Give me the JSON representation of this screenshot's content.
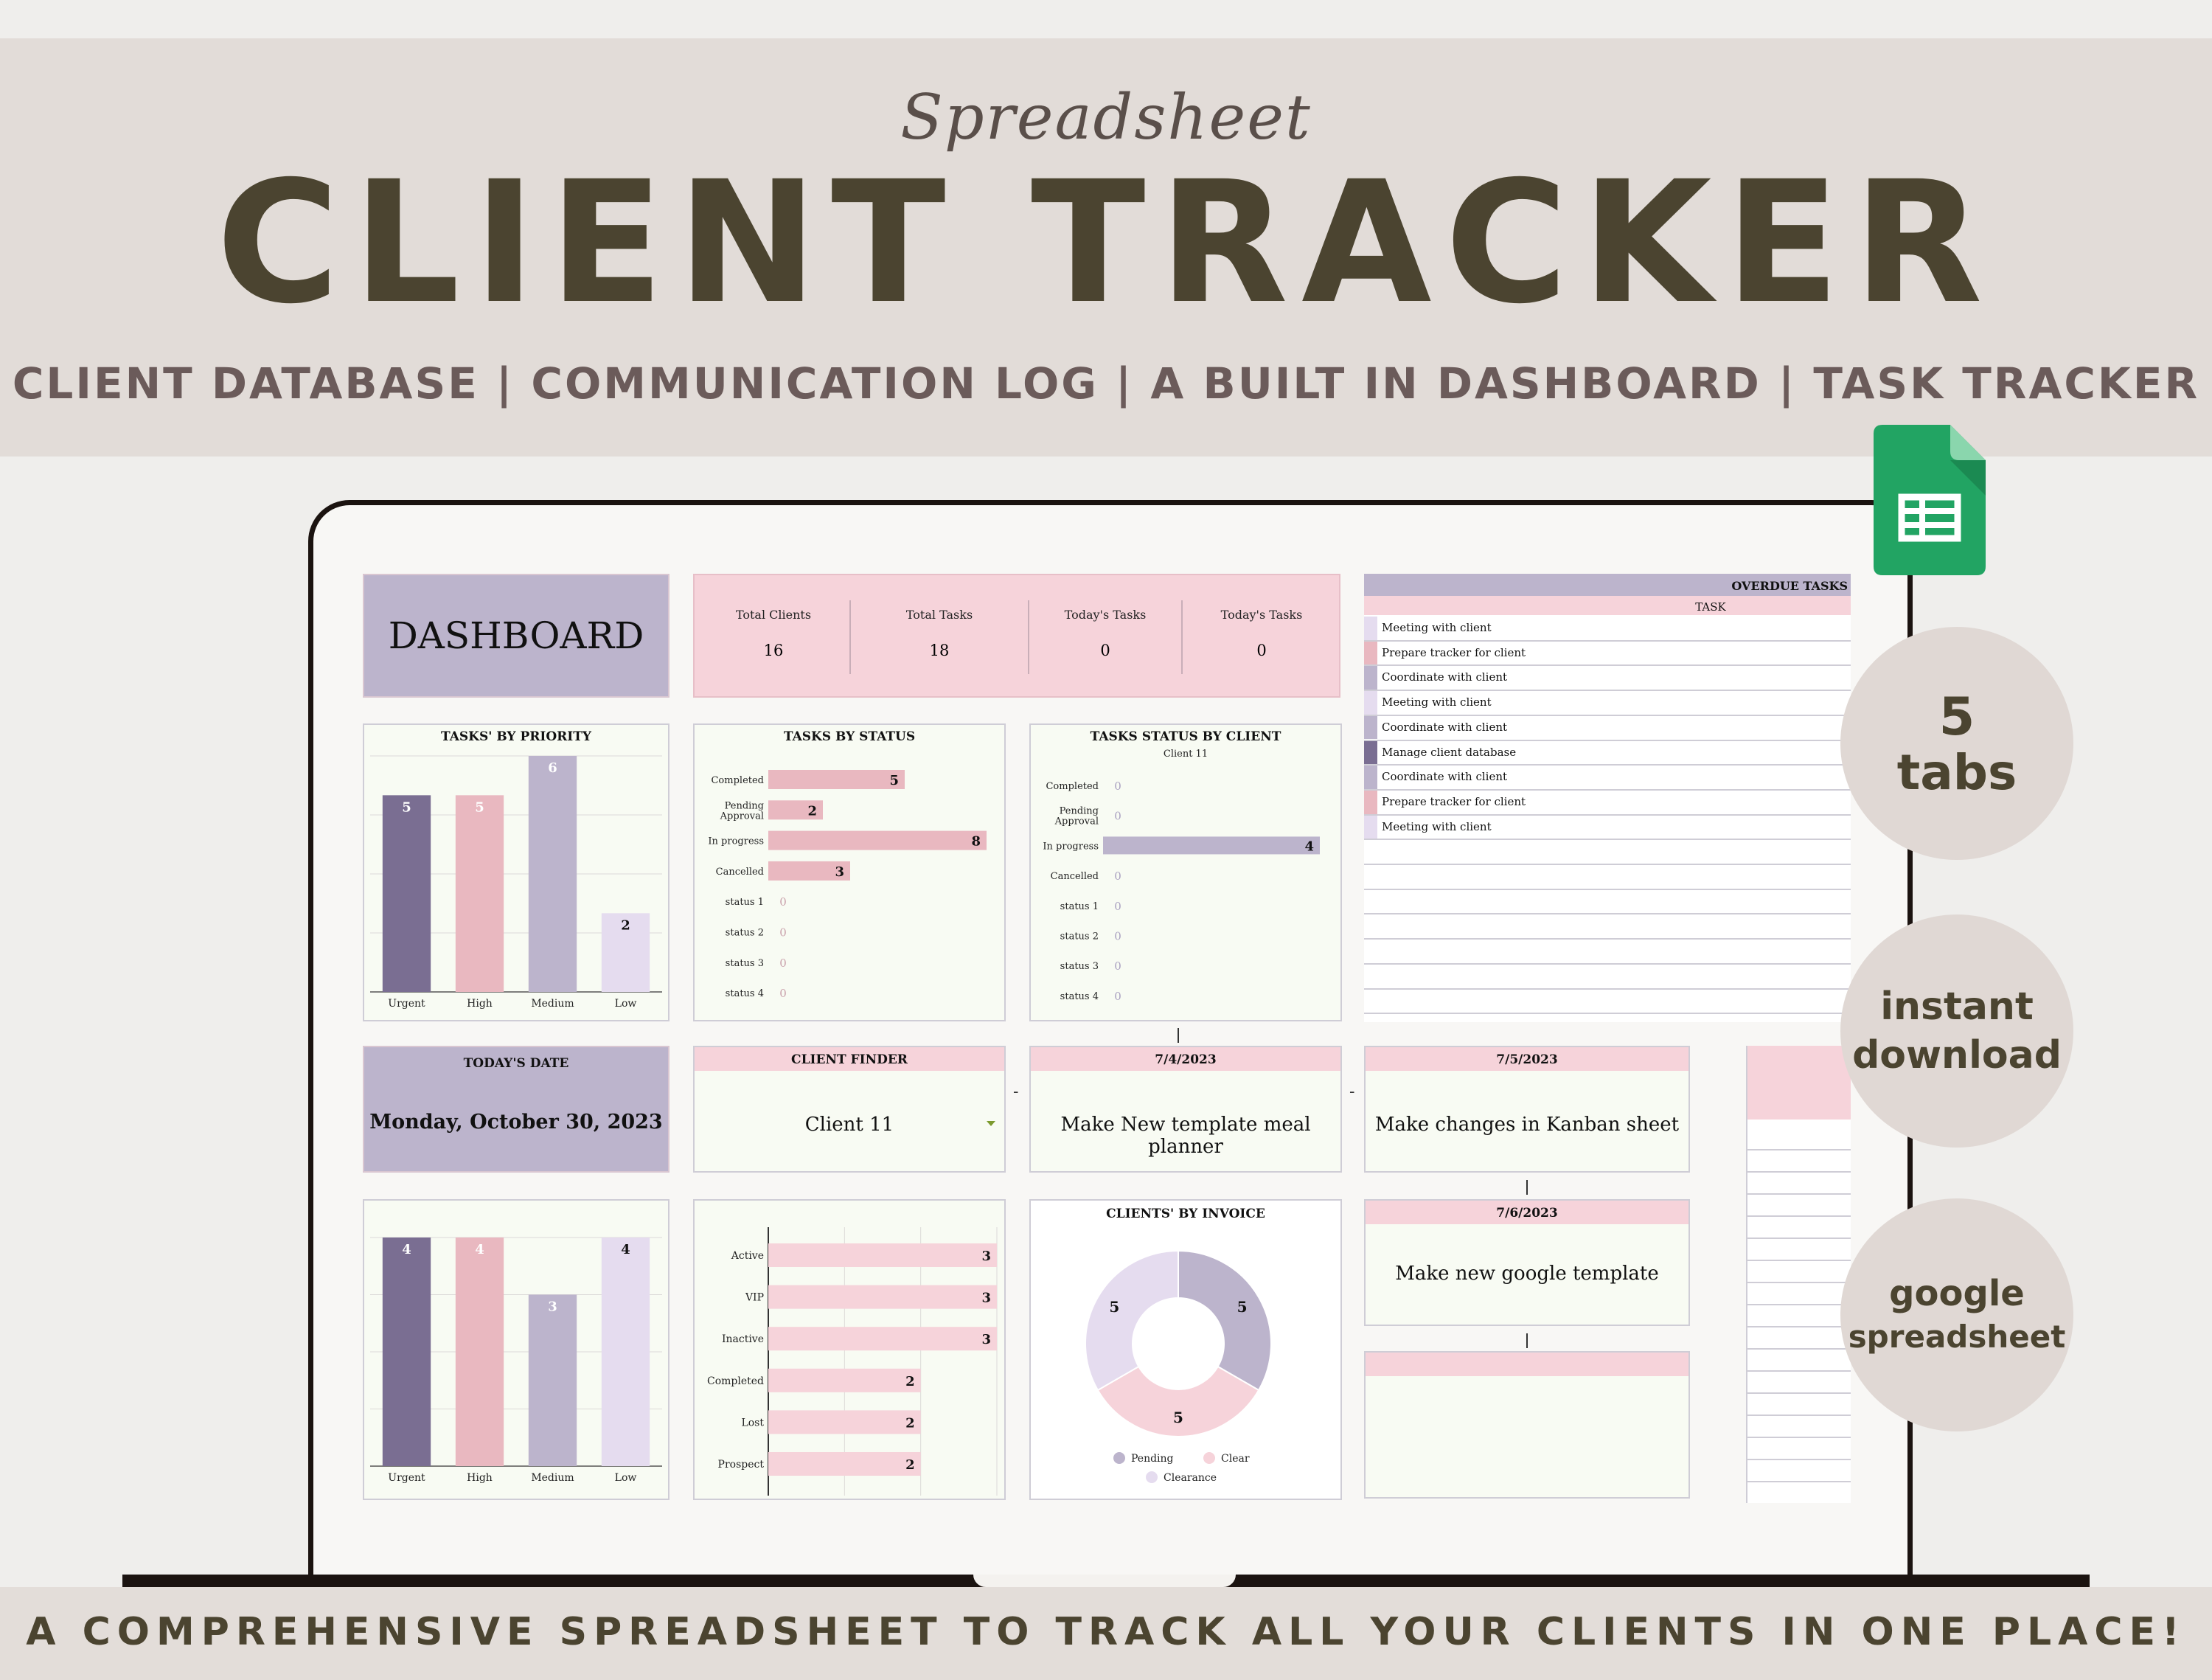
{
  "banner": {
    "script_label": "Spreadsheet",
    "title": "CLIENT TRACKER",
    "subtitle": "CLIENT DATABASE | COMMUNICATION LOG | A BUILT IN DASHBOARD | TASK TRACKER",
    "footer": "A COMPREHENSIVE SPREADSHEET TO TRACK ALL YOUR CLIENTS IN ONE PLACE!"
  },
  "badges": [
    {
      "line1": "5",
      "line2": "tabs"
    },
    {
      "line1": "instant",
      "line2": "download"
    },
    {
      "line1": "google",
      "line2": "spreadsheet"
    }
  ],
  "icons": {
    "sheets": "google-sheets-icon"
  },
  "colors": {
    "purple_dark": "#7a6e92",
    "pink": "#e9b8c0",
    "lavender": "#bcb4cc",
    "lavender_light": "#e5dcef",
    "header_pink": "#f6d3da",
    "panel_bg": "#f8fbf3",
    "dark_text": "#4b4430"
  },
  "dashboard": {
    "title": "DASHBOARD",
    "stats": [
      {
        "label": "Total Clients",
        "value": "16"
      },
      {
        "label": "Total Tasks",
        "value": "18"
      },
      {
        "label": "Today's Tasks",
        "value": "0"
      },
      {
        "label": "Today's Tasks",
        "value": "0"
      }
    ],
    "overdue": {
      "title": "OVERDUE TASKS",
      "column": "TASK",
      "rows": [
        {
          "task": "Meeting with client",
          "color": "#e5dcef"
        },
        {
          "task": "Prepare tracker for client",
          "color": "#e9b8c0"
        },
        {
          "task": "Coordinate with client",
          "color": "#bcb4cc"
        },
        {
          "task": "Meeting with client",
          "color": "#e5dcef"
        },
        {
          "task": "Coordinate with client",
          "color": "#bcb4cc"
        },
        {
          "task": "Manage client database",
          "color": "#7a6e92"
        },
        {
          "task": "Coordinate with client",
          "color": "#bcb4cc"
        },
        {
          "task": "Prepare tracker for client",
          "color": "#e9b8c0"
        },
        {
          "task": "Meeting with client",
          "color": "#e5dcef"
        }
      ]
    },
    "today": {
      "label": "TODAY'S DATE",
      "value": "Monday, October 30, 2023"
    },
    "client_finder": {
      "label": "CLIENT FINDER",
      "value": "Client 11"
    },
    "cards": [
      {
        "date": "7/4/2023",
        "text": "Make New template meal planner"
      },
      {
        "date": "7/5/2023",
        "text": "Make changes in Kanban sheet"
      },
      {
        "date": "7/6/2023",
        "text": "Make new google template"
      },
      {
        "date": "",
        "text": ""
      }
    ],
    "separators": {
      "dash": "-"
    }
  },
  "chart_data": [
    {
      "type": "bar",
      "title": "TASKS' BY PRIORITY",
      "categories": [
        "Urgent",
        "High",
        "Medium",
        "Low"
      ],
      "values": [
        5,
        5,
        6,
        2
      ],
      "colors": [
        "#7a6e92",
        "#e9b8c0",
        "#bcb4cc",
        "#e5dcef"
      ],
      "ylim": [
        0,
        6
      ]
    },
    {
      "type": "bar",
      "orientation": "horizontal",
      "title": "TASKS BY STATUS",
      "categories": [
        "Completed",
        "Pending Approval",
        "In progress",
        "Cancelled",
        "status 1",
        "status 2",
        "status 3",
        "status 4"
      ],
      "values": [
        5,
        2,
        8,
        3,
        0,
        0,
        0,
        0
      ],
      "color": "#e9b8c0"
    },
    {
      "type": "bar",
      "orientation": "horizontal",
      "title": "TASKS STATUS BY CLIENT",
      "subtitle": "Client 11",
      "categories": [
        "Completed",
        "Pending Approval",
        "In progress",
        "Cancelled",
        "status 1",
        "status 2",
        "status 3",
        "status 4"
      ],
      "values": [
        0,
        0,
        4,
        0,
        0,
        0,
        0,
        0
      ],
      "color": "#bcb4cc"
    },
    {
      "type": "bar",
      "title": "",
      "categories": [
        "Urgent",
        "High",
        "Medium",
        "Low"
      ],
      "values": [
        4,
        4,
        3,
        4
      ],
      "colors": [
        "#7a6e92",
        "#e9b8c0",
        "#bcb4cc",
        "#e5dcef"
      ],
      "ylim": [
        0,
        4
      ]
    },
    {
      "type": "bar",
      "orientation": "horizontal",
      "title": "",
      "categories": [
        "Active",
        "VIP",
        "Inactive",
        "Completed",
        "Lost",
        "Prospect"
      ],
      "values": [
        3,
        3,
        3,
        2,
        2,
        2
      ],
      "color": "#f6d3da"
    },
    {
      "type": "pie",
      "title": "CLIENTS' BY INVOICE",
      "categories": [
        "Pending",
        "Clear",
        "Clearance"
      ],
      "values": [
        5,
        5,
        5
      ],
      "colors": [
        "#bcb4cc",
        "#f6d3da",
        "#e5dcef"
      ],
      "legend": "bottom"
    }
  ]
}
